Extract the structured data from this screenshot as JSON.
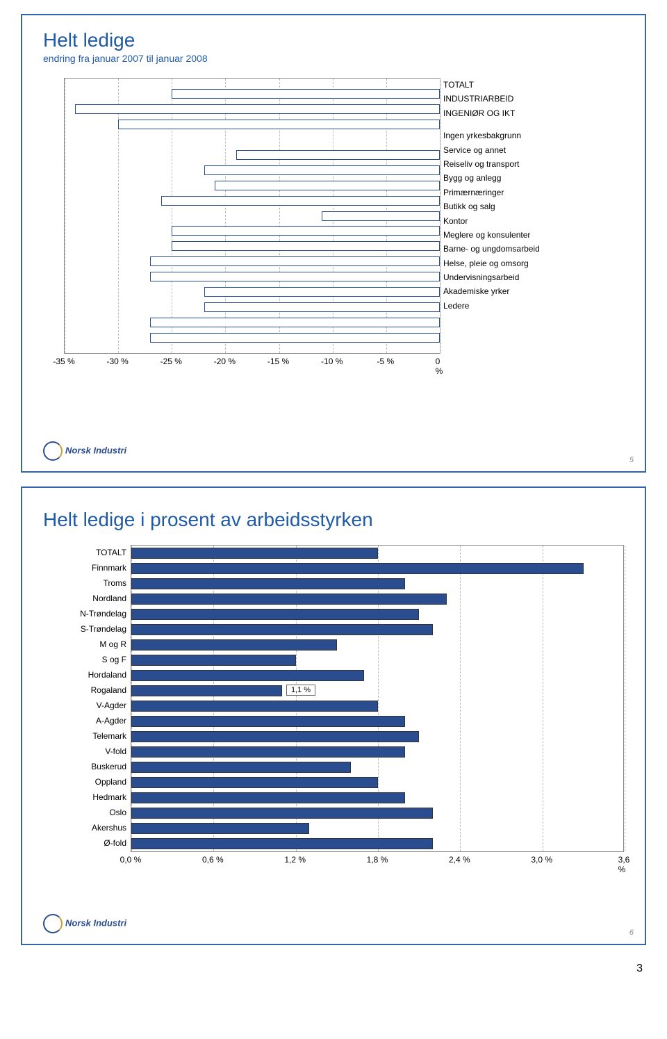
{
  "slide1": {
    "title": "Helt ledige",
    "subtitle": "endring fra januar 2007 til januar 2008",
    "title_color": "#1f5aa6",
    "subtitle_color": "#1f5aa6",
    "chart": {
      "type": "bar-horizontal",
      "x_min": -35,
      "x_max": 0,
      "x_step": 5,
      "x_tick_labels": [
        "-35 %",
        "-30 %",
        "-25 %",
        "-20 %",
        "-15 %",
        "-10 %",
        "-5 %",
        "0 %"
      ],
      "bar_fill": "#ffffff",
      "bar_border": "#2a4d8f",
      "grid_color": "#bbbbbb",
      "plot_border": "#888888",
      "group1": [
        {
          "label": "TOTALT",
          "value": -25
        },
        {
          "label": "INDUSTRIARBEID",
          "value": -34
        },
        {
          "label": "INGENIØR OG IKT",
          "value": -30
        }
      ],
      "group2": [
        {
          "label": "Ingen yrkesbakgrunn",
          "value": -19
        },
        {
          "label": "Service og annet",
          "value": -22
        },
        {
          "label": "Reiseliv og transport",
          "value": -21
        },
        {
          "label": "Bygg og anlegg",
          "value": -26
        },
        {
          "label": "Primærnæringer",
          "value": -11
        },
        {
          "label": "Butikk og salg",
          "value": -25
        },
        {
          "label": "Kontor",
          "value": -25
        },
        {
          "label": "Meglere og konsulenter",
          "value": -27
        },
        {
          "label": "Barne- og ungdomsarbeid",
          "value": -27
        },
        {
          "label": "Helse, pleie og omsorg",
          "value": -22
        },
        {
          "label": "Undervisningsarbeid",
          "value": -22
        },
        {
          "label": "Akademiske yrker",
          "value": -27
        },
        {
          "label": "Ledere",
          "value": -27
        }
      ]
    },
    "page_num": "5",
    "logo_text": "Norsk Industri"
  },
  "slide2": {
    "title": "Helt ledige i prosent av arbeidsstyrken",
    "title_color": "#1f5aa6",
    "chart": {
      "type": "bar-horizontal",
      "x_min": 0.0,
      "x_max": 3.6,
      "x_step": 0.6,
      "x_tick_labels": [
        "0,0 %",
        "0,6 %",
        "1,2 %",
        "1,8 %",
        "2,4 %",
        "3,0 %",
        "3,6 %"
      ],
      "bar_fill": "#2a4d8f",
      "bar_border": "#333333",
      "grid_color": "#bbbbbb",
      "plot_border": "#888888",
      "annotation": {
        "label": "1,1 %",
        "row_index": 9
      },
      "categories": [
        {
          "label": "TOTALT",
          "value": 1.8
        },
        {
          "label": "Finnmark",
          "value": 3.3
        },
        {
          "label": "Troms",
          "value": 2.0
        },
        {
          "label": "Nordland",
          "value": 2.3
        },
        {
          "label": "N-Trøndelag",
          "value": 2.1
        },
        {
          "label": "S-Trøndelag",
          "value": 2.2
        },
        {
          "label": "M og R",
          "value": 1.5
        },
        {
          "label": "S og F",
          "value": 1.2
        },
        {
          "label": "Hordaland",
          "value": 1.7
        },
        {
          "label": "Rogaland",
          "value": 1.1
        },
        {
          "label": "V-Agder",
          "value": 1.8
        },
        {
          "label": "A-Agder",
          "value": 2.0
        },
        {
          "label": "Telemark",
          "value": 2.1
        },
        {
          "label": "V-fold",
          "value": 2.0
        },
        {
          "label": "Buskerud",
          "value": 1.6
        },
        {
          "label": "Oppland",
          "value": 1.8
        },
        {
          "label": "Hedmark",
          "value": 2.0
        },
        {
          "label": "Oslo",
          "value": 2.2
        },
        {
          "label": "Akershus",
          "value": 1.3
        },
        {
          "label": "Ø-fold",
          "value": 2.2
        }
      ]
    },
    "page_num": "6",
    "logo_text": "Norsk Industri"
  },
  "outer_page_num": "3"
}
